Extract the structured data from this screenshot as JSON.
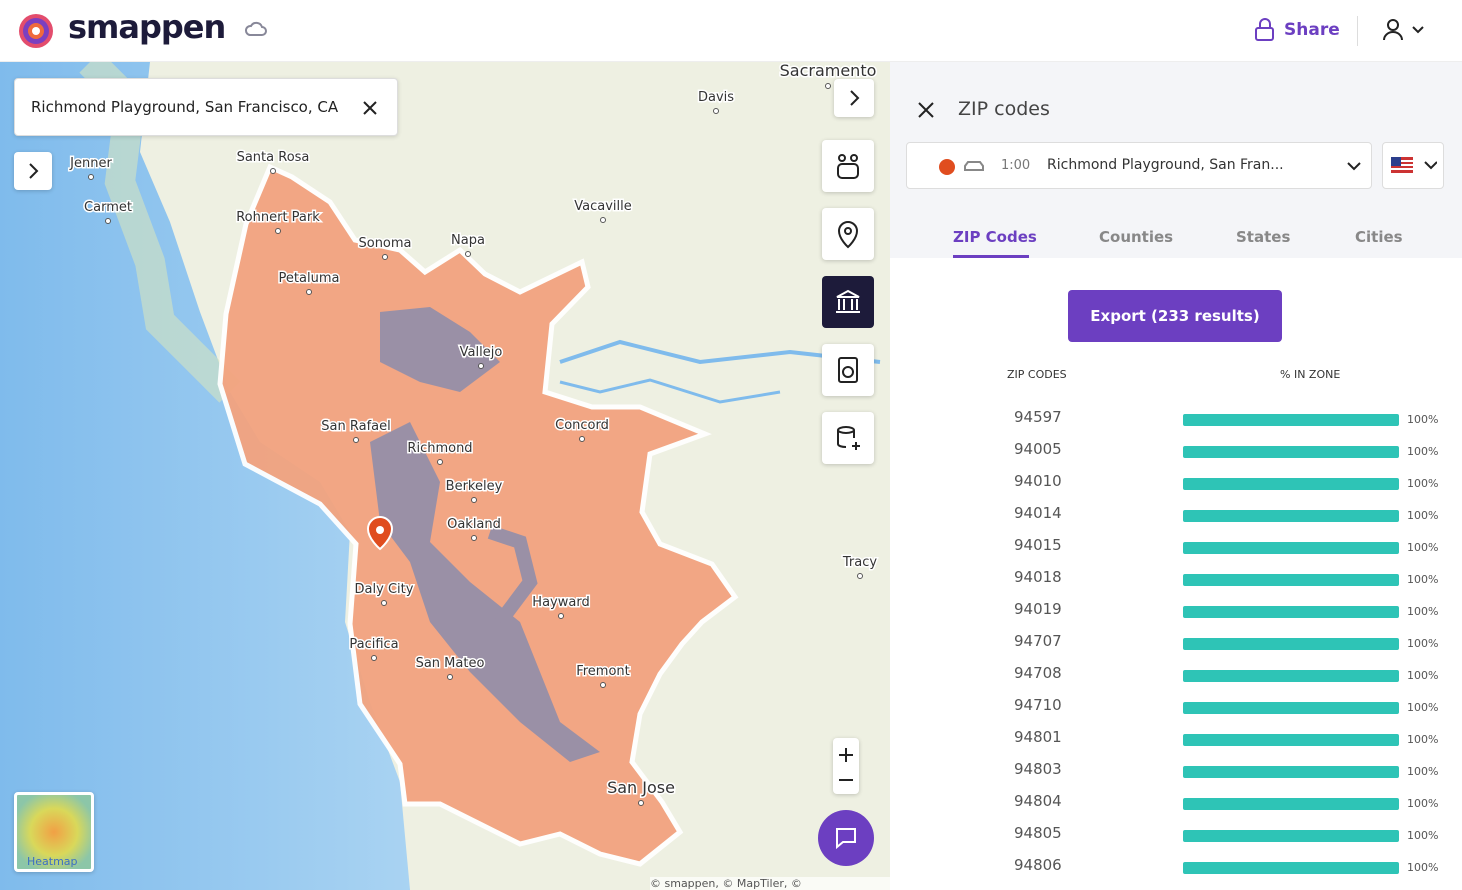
{
  "header": {
    "brand": "smappen",
    "share": "Share"
  },
  "search": {
    "query": "Richmond Playground, San Francisco, CA"
  },
  "map": {
    "labels": [
      "Sacramento",
      "Davis",
      "Santa Rosa",
      "Jenner",
      "Carmet",
      "Vacaville",
      "Rohnert Park",
      "Sonoma",
      "Napa",
      "Petaluma",
      "Vallejo",
      "San Rafael",
      "Concord",
      "Richmond",
      "Berkeley",
      "Oakland",
      "Daly City",
      "Hayward",
      "Tracy",
      "Pacifica",
      "San Mateo",
      "Fremont",
      "San Jose"
    ],
    "heatmap": "Heatmap",
    "attribution": "© smappen, © MapTiler, © OpenStreetMap"
  },
  "panel": {
    "title": "ZIP codes",
    "zone": {
      "time": "1:00",
      "name": "Richmond Playground, San Fran..."
    },
    "tabs": [
      "ZIP Codes",
      "Counties",
      "States",
      "Cities"
    ],
    "export": "Export (233 results)",
    "columns": [
      "ZIP CODES",
      "% IN ZONE"
    ],
    "rows": [
      [
        "94597",
        "100%"
      ],
      [
        "94005",
        "100%"
      ],
      [
        "94010",
        "100%"
      ],
      [
        "94014",
        "100%"
      ],
      [
        "94015",
        "100%"
      ],
      [
        "94018",
        "100%"
      ],
      [
        "94019",
        "100%"
      ],
      [
        "94707",
        "100%"
      ],
      [
        "94708",
        "100%"
      ],
      [
        "94710",
        "100%"
      ],
      [
        "94801",
        "100%"
      ],
      [
        "94803",
        "100%"
      ],
      [
        "94804",
        "100%"
      ],
      [
        "94805",
        "100%"
      ],
      [
        "94806",
        "100%"
      ]
    ]
  }
}
